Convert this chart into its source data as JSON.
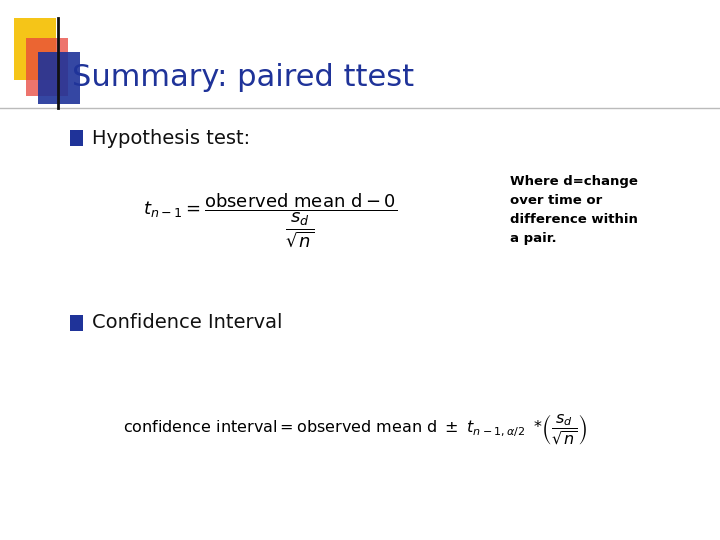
{
  "title": "Summary: paired ttest",
  "title_color": "#1F3399",
  "title_fontsize": 22,
  "bg_color": "#FFFFFF",
  "bullet_color": "#1F3399",
  "bullet1_text": "Hypothesis test:",
  "bullet2_text": "Confidence Interval",
  "note_text": "Where d=change\nover time or\ndifference within\na pair.",
  "note_fontsize": 9.5,
  "formula_color": "#000000",
  "note_color": "#000000",
  "yellow_color": "#F5C518",
  "red_color": "#E8453C",
  "blue_color": "#1F3399"
}
